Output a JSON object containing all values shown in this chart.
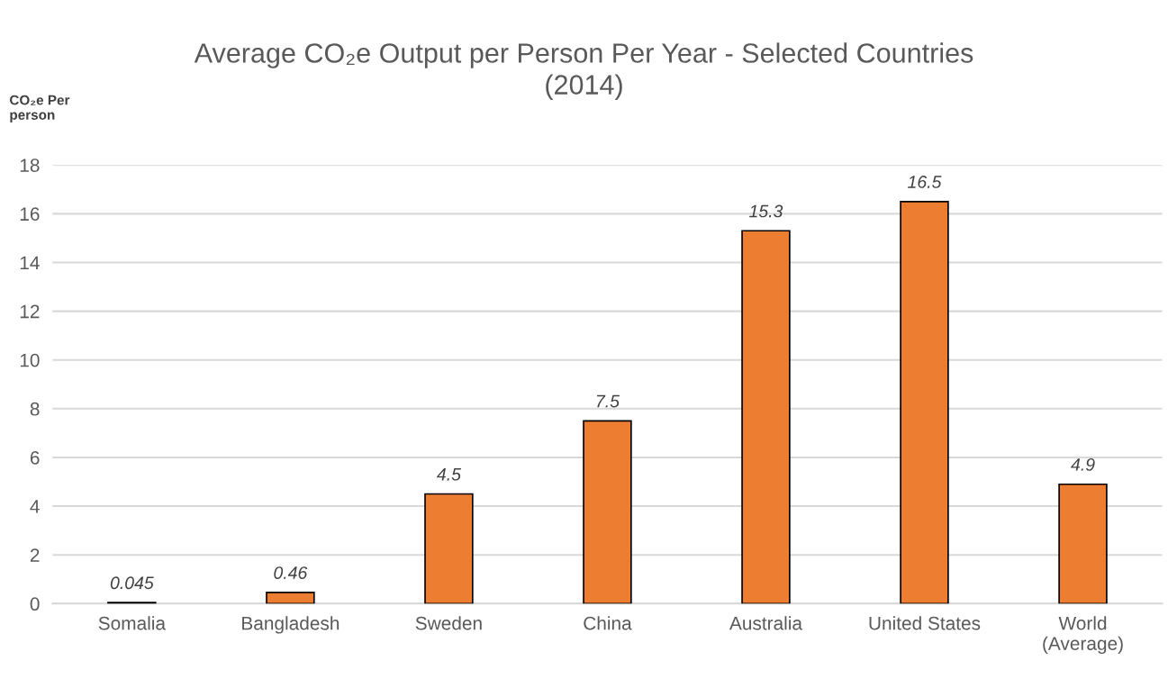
{
  "chart_data": {
    "type": "bar",
    "title": "Average CO₂e Output per Person Per Year - Selected Countries\n(2014)",
    "ylabel": "CO₂e Per\nperson",
    "categories": [
      "Somalia",
      "Bangladesh",
      "Sweden",
      "China",
      "Australia",
      "United States",
      "World\n(Average)"
    ],
    "values": [
      0.045,
      0.46,
      4.5,
      7.5,
      15.3,
      16.5,
      4.9
    ],
    "color": "#ed7d31",
    "ylim": [
      0,
      18
    ],
    "yticks": [
      0,
      2,
      4,
      6,
      8,
      10,
      12,
      14,
      16,
      18
    ],
    "grid": "y",
    "data_labels": true
  }
}
